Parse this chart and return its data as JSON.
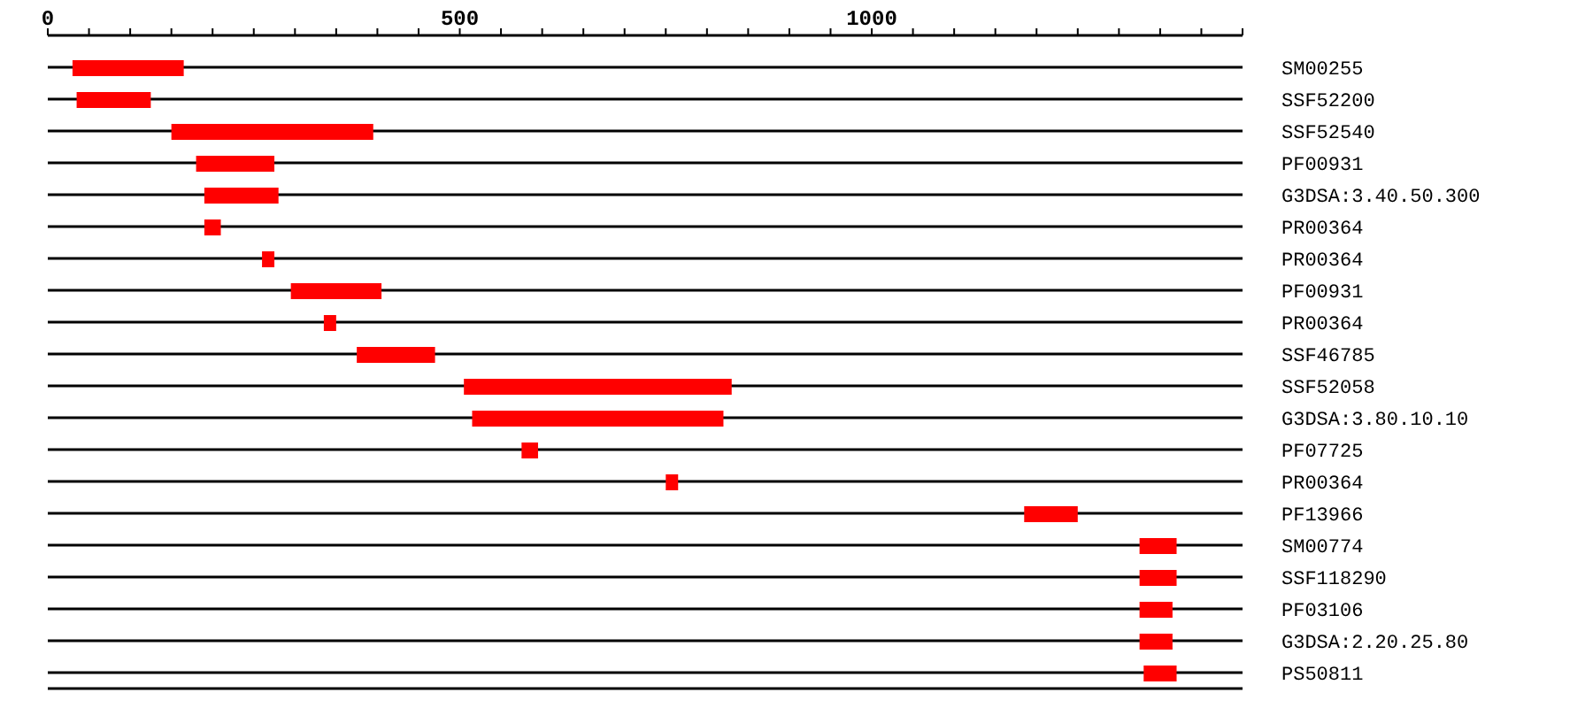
{
  "chart_data": {
    "type": "bar",
    "orientation": "horizontal",
    "categories": [
      "SM00255",
      "SSF52200",
      "SSF52540",
      "PF00931",
      "G3DSA:3.40.50.300",
      "PR00364",
      "PR00364",
      "PF00931",
      "PR00364",
      "SSF46785",
      "SSF52058",
      "G3DSA:3.80.10.10",
      "PF07725",
      "PR00364",
      "PF13966",
      "SM00774",
      "SSF118290",
      "PF03106",
      "G3DSA:2.20.25.80",
      "PS50811"
    ],
    "base": [
      30,
      35,
      150,
      180,
      190,
      190,
      260,
      295,
      335,
      375,
      505,
      515,
      575,
      750,
      1185,
      1325,
      1325,
      1325,
      1325,
      1330
    ],
    "values": [
      135,
      90,
      245,
      95,
      90,
      20,
      15,
      110,
      15,
      95,
      325,
      305,
      20,
      15,
      65,
      45,
      45,
      40,
      40,
      40
    ],
    "color": "#ff0000",
    "xlim": [
      0,
      1450
    ],
    "xticks": [
      0,
      {
        "value": 50,
        "label": null
      },
      {
        "value": 100,
        "label": null
      },
      {
        "value": 150,
        "label": null
      },
      {
        "value": 200,
        "label": null
      },
      {
        "value": 250,
        "label": null
      },
      {
        "value": 300,
        "label": null
      },
      {
        "value": 350,
        "label": null
      },
      {
        "value": 400,
        "label": null
      },
      {
        "value": 450,
        "label": null
      },
      500,
      {
        "value": 550,
        "label": null
      },
      {
        "value": 600,
        "label": null
      },
      {
        "value": 650,
        "label": null
      },
      {
        "value": 700,
        "label": null
      },
      {
        "value": 750,
        "label": null
      },
      {
        "value": 800,
        "label": null
      },
      {
        "value": 850,
        "label": null
      },
      {
        "value": 900,
        "label": null
      },
      {
        "value": 950,
        "label": null
      },
      1000,
      {
        "value": 1050,
        "label": null
      },
      {
        "value": 1100,
        "label": null
      },
      {
        "value": 1150,
        "label": null
      },
      {
        "value": 1200,
        "label": null
      },
      {
        "value": 1250,
        "label": null
      },
      {
        "value": 1300,
        "label": null
      },
      {
        "value": 1350,
        "label": null
      },
      {
        "value": 1400,
        "label": null
      },
      {
        "value": 1450,
        "label": null
      }
    ],
    "grid": "y"
  }
}
